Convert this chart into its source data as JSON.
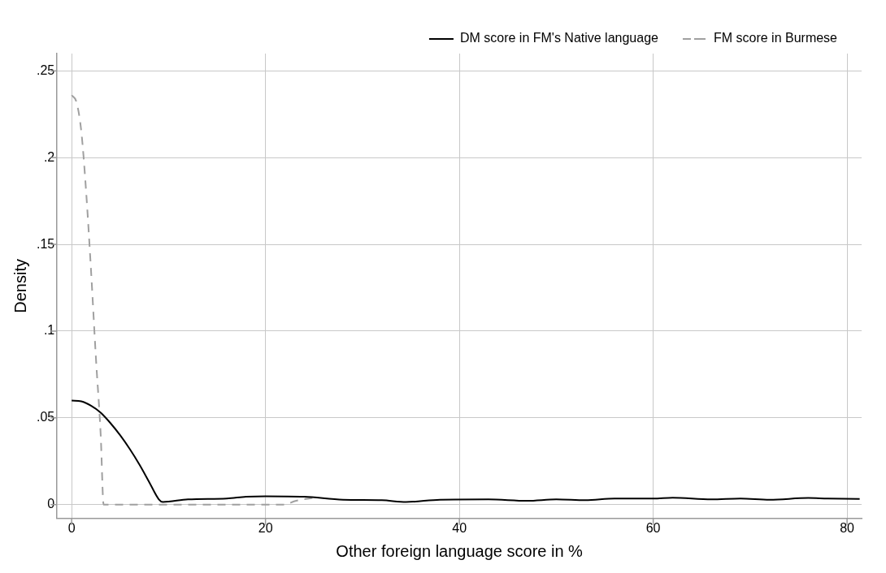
{
  "chart_data": {
    "type": "line",
    "xlabel": "Other foreign language score in %",
    "ylabel": "Density",
    "xlim": [
      -1.5,
      81.5
    ],
    "xticks": [
      0,
      20,
      40,
      60,
      80
    ],
    "ylim": [
      -0.008,
      0.26
    ],
    "yticks": [
      {
        "value": 0,
        "label": "0"
      },
      {
        "value": 0.05,
        "label": ".05"
      },
      {
        "value": 0.1,
        "label": ".1"
      },
      {
        "value": 0.15,
        "label": ".15"
      },
      {
        "value": 0.2,
        "label": ".2"
      },
      {
        "value": 0.25,
        "label": ".25"
      }
    ],
    "grid": true,
    "legend": "top right",
    "marker": "none",
    "series": [
      {
        "name": "DM score in FM's Native language",
        "color": "#000000",
        "line_style": "solid",
        "x": [
          0,
          1,
          2,
          3,
          4,
          5,
          6,
          7,
          8,
          9,
          9.4,
          12,
          16,
          18,
          20,
          24,
          28,
          32,
          34.5,
          38,
          43,
          47,
          50,
          53,
          56,
          60,
          62,
          66,
          69,
          72,
          76,
          78,
          81.3
        ],
        "values": [
          0.06,
          0.0595,
          0.057,
          0.053,
          0.047,
          0.04,
          0.032,
          0.023,
          0.013,
          0.003,
          0.0015,
          0.003,
          0.0035,
          0.0045,
          0.0048,
          0.0045,
          0.0028,
          0.0025,
          0.0015,
          0.0028,
          0.003,
          0.0022,
          0.003,
          0.0025,
          0.0035,
          0.0035,
          0.004,
          0.003,
          0.0035,
          0.0028,
          0.0038,
          0.0035,
          0.0033
        ]
      },
      {
        "name": "FM score in Burmese",
        "color": "#a0a0a0",
        "line_style": "dashed",
        "x": [
          0,
          0.5,
          1,
          1.5,
          2,
          2.5,
          3,
          3.3,
          10,
          20,
          22,
          23,
          25
        ],
        "values": [
          0.236,
          0.232,
          0.215,
          0.18,
          0.135,
          0.085,
          0.04,
          0,
          0,
          0,
          0,
          0.002,
          0.004
        ]
      }
    ]
  }
}
